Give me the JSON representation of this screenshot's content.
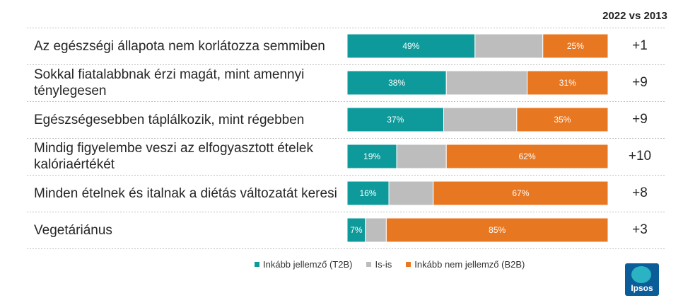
{
  "header": {
    "comparison_label": "2022 vs 2013"
  },
  "chart_data": {
    "type": "bar",
    "orientation": "horizontal",
    "stacked": true,
    "normalized": true,
    "categories": [
      "Az egészségi állapota nem korlátozza semmiben",
      "Sokkal fiatalabbnak érzi magát, mint amennyi ténylegesen",
      "Egészségesebben táplálkozik, mint régebben",
      "Mindig figyelembe veszi az elfogyasztott ételek kalóriaértékét",
      "Minden ételnek és italnak a diétás változatát keresi",
      "Vegetáriánus"
    ],
    "series": [
      {
        "name": "Inkább jellemző (T2B)",
        "color": "#0e9a9a",
        "values": [
          49,
          38,
          37,
          19,
          16,
          7
        ],
        "labels": [
          "49%",
          "38%",
          "37%",
          "19%",
          "16%",
          "7%"
        ]
      },
      {
        "name": "Is-is",
        "color": "#bdbdbd",
        "values": [
          26,
          31,
          28,
          19,
          17,
          8
        ],
        "labels": [
          "",
          "",
          "",
          "",
          "",
          ""
        ]
      },
      {
        "name": "Inkább nem jellemző (B2B)",
        "color": "#e87722",
        "values": [
          25,
          31,
          35,
          62,
          67,
          85
        ],
        "labels": [
          "25%",
          "31%",
          "35%",
          "62%",
          "67%",
          "85%"
        ]
      }
    ],
    "changes": [
      "+1",
      "+9",
      "+9",
      "+10",
      "+8",
      "+3"
    ],
    "xlim": [
      0,
      100
    ],
    "legend": "bottom"
  },
  "logo": {
    "text": "Ipsos"
  }
}
